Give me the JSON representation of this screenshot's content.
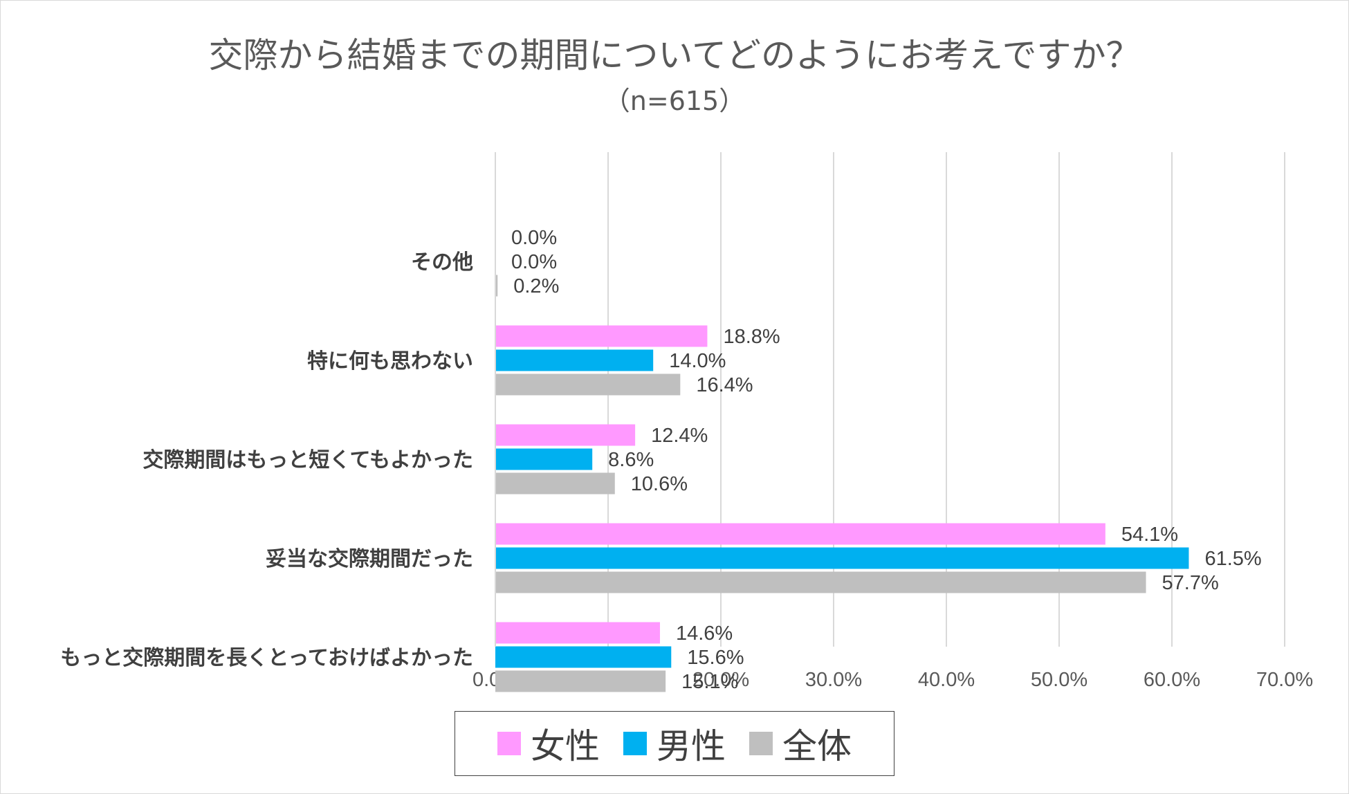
{
  "chart_data": {
    "type": "bar",
    "orientation": "horizontal",
    "title": "交際から結婚までの期間についてどのようにお考えですか？",
    "subtitle": "（n=615）",
    "categories": [
      "その他",
      "特に何も思わない",
      "交際期間はもっと短くてもよかった",
      "妥当な交際期間だった",
      "もっと交際期間を長くとっておけばよかった"
    ],
    "series": [
      {
        "name": "女性",
        "color": "#ff99ff",
        "values": [
          0.0,
          18.8,
          12.4,
          54.1,
          14.6
        ],
        "labels": [
          "0.0%",
          "18.8%",
          "12.4%",
          "54.1%",
          "14.6%"
        ]
      },
      {
        "name": "男性",
        "color": "#00b0f0",
        "values": [
          0.0,
          14.0,
          8.6,
          61.5,
          15.6
        ],
        "labels": [
          "0.0%",
          "14.0%",
          "8.6%",
          "61.5%",
          "15.6%"
        ]
      },
      {
        "name": "全体",
        "color": "#bfbfbf",
        "values": [
          0.2,
          16.4,
          10.6,
          57.7,
          15.1
        ],
        "labels": [
          "0.2%",
          "16.4%",
          "10.6%",
          "57.7%",
          "15.1%"
        ]
      }
    ],
    "xlim": [
      0,
      70
    ],
    "x_ticks": [
      "0.0%",
      "10.0%",
      "20.0%",
      "30.0%",
      "40.0%",
      "50.0%",
      "60.0%",
      "70.0%"
    ],
    "grid": "vertical",
    "legend_position": "bottom"
  }
}
